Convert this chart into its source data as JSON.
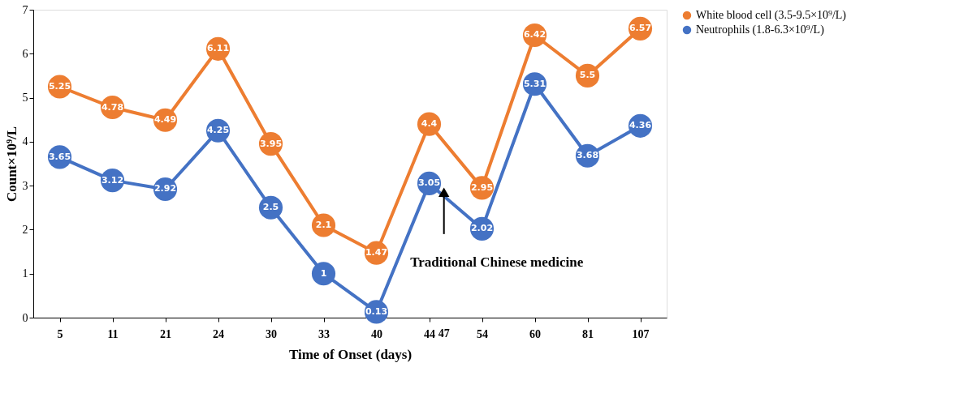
{
  "chart_data": {
    "type": "line",
    "xlabel": "Time of Onset (days)",
    "ylabel": "Count×10⁹/L",
    "categories": [
      "5",
      "11",
      "21",
      "24",
      "30",
      "33",
      "40",
      "44",
      "54",
      "60",
      "81",
      "107"
    ],
    "series": [
      {
        "name": "White blood cell (3.5-9.5×10⁹/L)",
        "color": "#ed7d31",
        "values": [
          5.25,
          4.78,
          4.49,
          6.11,
          3.95,
          2.1,
          1.47,
          4.4,
          2.95,
          6.42,
          5.5,
          6.57
        ]
      },
      {
        "name": "Neutrophils (1.8-6.3×10⁹/L)",
        "color": "#4472c4",
        "values": [
          3.65,
          3.12,
          2.92,
          4.25,
          2.5,
          1,
          0.13,
          3.05,
          2.02,
          5.31,
          3.68,
          4.36
        ]
      }
    ],
    "ylim": [
      0,
      7
    ],
    "yticks": [
      0,
      1,
      2,
      3,
      4,
      5,
      6,
      7
    ],
    "grid": false,
    "legend": "right",
    "marker": "circle",
    "line_style": "solid",
    "data_labels": true,
    "annotations": [
      "47",
      "Traditional Chinese medicine"
    ]
  }
}
